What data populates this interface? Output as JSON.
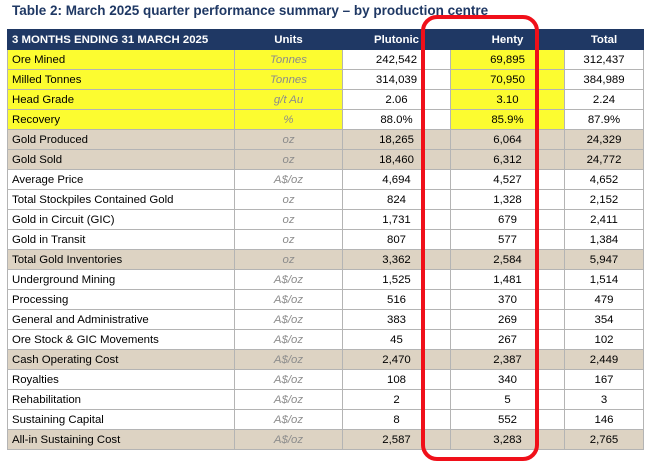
{
  "title": "Table 2: March 2025 quarter performance summary – by production centre",
  "columns": {
    "label": "3 MONTHS ENDING 31 MARCH 2025",
    "units": "Units",
    "plutonic": "Plutonic",
    "henty": "Henty",
    "total": "Total"
  },
  "rows": [
    {
      "label": "Ore Mined",
      "units": "Tonnes",
      "plutonic": "242,542",
      "henty": "69,895",
      "total": "312,437"
    },
    {
      "label": "Milled Tonnes",
      "units": "Tonnes",
      "plutonic": "314,039",
      "henty": "70,950",
      "total": "384,989"
    },
    {
      "label": "Head Grade",
      "units": "g/t Au",
      "plutonic": "2.06",
      "henty": "3.10",
      "total": "2.24"
    },
    {
      "label": "Recovery",
      "units": "%",
      "plutonic": "88.0%",
      "henty": "85.9%",
      "total": "87.9%"
    },
    {
      "label": "Gold Produced",
      "units": "oz",
      "plutonic": "18,265",
      "henty": "6,064",
      "total": "24,329"
    },
    {
      "label": "Gold Sold",
      "units": "oz",
      "plutonic": "18,460",
      "henty": "6,312",
      "total": "24,772"
    },
    {
      "label": "Average Price",
      "units": "A$/oz",
      "plutonic": "4,694",
      "henty": "4,527",
      "total": "4,652"
    },
    {
      "label": "Total Stockpiles Contained Gold",
      "units": "oz",
      "plutonic": "824",
      "henty": "1,328",
      "total": "2,152"
    },
    {
      "label": "Gold in Circuit (GIC)",
      "units": "oz",
      "plutonic": "1,731",
      "henty": "679",
      "total": "2,411"
    },
    {
      "label": "Gold in Transit",
      "units": "oz",
      "plutonic": "807",
      "henty": "577",
      "total": "1,384"
    },
    {
      "label": "Total Gold Inventories",
      "units": "oz",
      "plutonic": "3,362",
      "henty": "2,584",
      "total": "5,947"
    },
    {
      "label": "Underground Mining",
      "units": "A$/oz",
      "plutonic": "1,525",
      "henty": "1,481",
      "total": "1,514"
    },
    {
      "label": "Processing",
      "units": "A$/oz",
      "plutonic": "516",
      "henty": "370",
      "total": "479"
    },
    {
      "label": "General and Administrative",
      "units": "A$/oz",
      "plutonic": "383",
      "henty": "269",
      "total": "354"
    },
    {
      "label": "Ore Stock & GIC Movements",
      "units": "A$/oz",
      "plutonic": "45",
      "henty": "267",
      "total": "102"
    },
    {
      "label": "Cash Operating Cost",
      "units": "A$/oz",
      "plutonic": "2,470",
      "henty": "2,387",
      "total": "2,449"
    },
    {
      "label": "Royalties",
      "units": "A$/oz",
      "plutonic": "108",
      "henty": "340",
      "total": "167"
    },
    {
      "label": "Rehabilitation",
      "units": "A$/oz",
      "plutonic": "2",
      "henty": "5",
      "total": "3"
    },
    {
      "label": "Sustaining Capital",
      "units": "A$/oz",
      "plutonic": "8",
      "henty": "552",
      "total": "146"
    },
    {
      "label": "All-in Sustaining Cost",
      "units": "A$/oz",
      "plutonic": "2,587",
      "henty": "3,283",
      "total": "2,765"
    }
  ],
  "colors": {
    "header_bg": "#1f3864",
    "shaded_row": "#ddd3c3",
    "highlight": "#fcfc30",
    "annotation": "#f0101a"
  }
}
